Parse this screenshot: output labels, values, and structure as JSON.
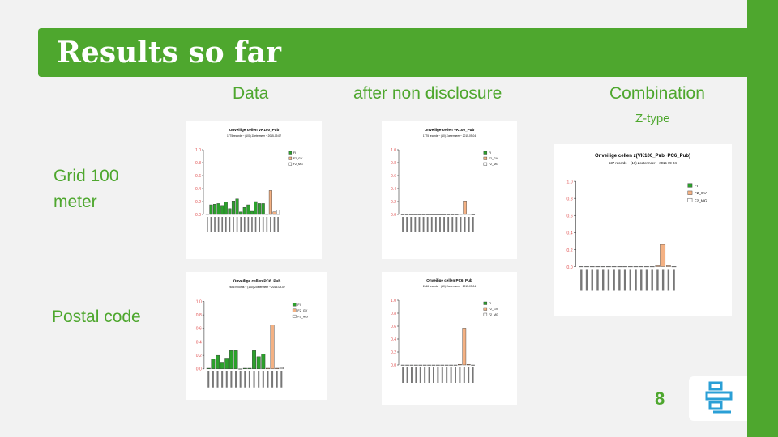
{
  "slide": {
    "title": "Results so far",
    "col_data": "Data",
    "col_after": "after non disclosure",
    "col_combination": "Combination",
    "col_combination_sub": "Z-type",
    "row_grid": "Grid 100\nmeter",
    "row_postal": "Postal code",
    "page_number": "8"
  },
  "colors": {
    "green": "#4ea72e",
    "fi": "#2ca02c",
    "f2gv": "#f4b183"
  },
  "chart_data": [
    {
      "id": "vk100-data",
      "type": "bar",
      "title": "Onveilige cellen VK100_Pub",
      "subtitle": "1775 records ~ (100) Zoetermeer ~ 2015-09-07",
      "legend": [
        "FI",
        "F2_GV",
        "F2_MG"
      ],
      "yticks": [
        "0.0",
        "0.2",
        "0.4",
        "0.6",
        "0.8",
        "1.0"
      ],
      "ylim": [
        0,
        1
      ],
      "bars": [
        {
          "s": 0,
          "v": 0.01
        },
        {
          "s": 0,
          "v": 0.15
        },
        {
          "s": 0,
          "v": 0.16
        },
        {
          "s": 0,
          "v": 0.17
        },
        {
          "s": 0,
          "v": 0.14
        },
        {
          "s": 0,
          "v": 0.19
        },
        {
          "s": 0,
          "v": 0.09
        },
        {
          "s": 0,
          "v": 0.21
        },
        {
          "s": 0,
          "v": 0.24
        },
        {
          "s": 0,
          "v": 0.04
        },
        {
          "s": 0,
          "v": 0.11
        },
        {
          "s": 0,
          "v": 0.15
        },
        {
          "s": 0,
          "v": 0.05
        },
        {
          "s": 0,
          "v": 0.2
        },
        {
          "s": 0,
          "v": 0.17
        },
        {
          "s": 0,
          "v": 0.17
        },
        {
          "s": 1,
          "v": 0.01
        },
        {
          "s": 1,
          "v": 0.37
        },
        {
          "s": 1,
          "v": 0.04
        },
        {
          "s": 2,
          "v": 0.07
        }
      ]
    },
    {
      "id": "vk100-after",
      "type": "bar",
      "title": "Onveilige cellen VK100_Pub",
      "subtitle": "1775 records ~ (10) Zoetermeer ~ 2015-09-04",
      "legend": [
        "FI",
        "F2_GV",
        "F2_MG"
      ],
      "yticks": [
        "0.0",
        "0.2",
        "0.4",
        "0.6",
        "0.8",
        "1.0"
      ],
      "ylim": [
        0,
        1
      ],
      "bars": [
        {
          "s": 0,
          "v": 0
        },
        {
          "s": 0,
          "v": 0
        },
        {
          "s": 0,
          "v": 0
        },
        {
          "s": 0,
          "v": 0
        },
        {
          "s": 0,
          "v": 0
        },
        {
          "s": 0,
          "v": 0
        },
        {
          "s": 0,
          "v": 0
        },
        {
          "s": 0,
          "v": 0
        },
        {
          "s": 0,
          "v": 0
        },
        {
          "s": 0,
          "v": 0
        },
        {
          "s": 0,
          "v": 0
        },
        {
          "s": 0,
          "v": 0
        },
        {
          "s": 0,
          "v": 0
        },
        {
          "s": 0,
          "v": 0
        },
        {
          "s": 1,
          "v": 0.01
        },
        {
          "s": 1,
          "v": 0.21
        },
        {
          "s": 1,
          "v": 0.01
        },
        {
          "s": 2,
          "v": 0.0
        }
      ]
    },
    {
      "id": "pc6-data",
      "type": "bar",
      "title": "Onveilige cellen PC6_Pub",
      "subtitle": "2646 records ~ (100) Zoetermeer ~ 2015-09-07",
      "legend": [
        "FI",
        "F2_GV",
        "F2_MG"
      ],
      "yticks": [
        "0.0",
        "0.2",
        "0.4",
        "0.6",
        "0.8",
        "1.0"
      ],
      "ylim": [
        0,
        1
      ],
      "bars": [
        {
          "s": 0,
          "v": 0.01
        },
        {
          "s": 0,
          "v": 0.15
        },
        {
          "s": 0,
          "v": 0.2
        },
        {
          "s": 0,
          "v": 0.1
        },
        {
          "s": 0,
          "v": 0.16
        },
        {
          "s": 0,
          "v": 0.27
        },
        {
          "s": 0,
          "v": 0.27
        },
        {
          "s": 0,
          "v": 0.0
        },
        {
          "s": 0,
          "v": 0.01
        },
        {
          "s": 0,
          "v": 0.01
        },
        {
          "s": 0,
          "v": 0.27
        },
        {
          "s": 0,
          "v": 0.18
        },
        {
          "s": 0,
          "v": 0.22
        },
        {
          "s": 1,
          "v": 0.01
        },
        {
          "s": 1,
          "v": 0.65
        },
        {
          "s": 1,
          "v": 0.01
        },
        {
          "s": 2,
          "v": 0.02
        }
      ]
    },
    {
      "id": "pc6-after",
      "type": "bar",
      "title": "Onveilige cellen PC6_Pub",
      "subtitle": "2646 records ~ (10) Zoetermeer ~ 2015-09-04",
      "legend": [
        "FI",
        "F2_GV",
        "F2_MG"
      ],
      "yticks": [
        "0.0",
        "0.2",
        "0.4",
        "0.6",
        "0.8",
        "1.0"
      ],
      "ylim": [
        0,
        1
      ],
      "bars": [
        {
          "s": 0,
          "v": 0
        },
        {
          "s": 0,
          "v": 0
        },
        {
          "s": 0,
          "v": 0
        },
        {
          "s": 0,
          "v": 0
        },
        {
          "s": 0,
          "v": 0
        },
        {
          "s": 0,
          "v": 0
        },
        {
          "s": 0,
          "v": 0
        },
        {
          "s": 0,
          "v": 0
        },
        {
          "s": 0,
          "v": 0
        },
        {
          "s": 0,
          "v": 0
        },
        {
          "s": 0,
          "v": 0
        },
        {
          "s": 0,
          "v": 0
        },
        {
          "s": 0,
          "v": 0
        },
        {
          "s": 1,
          "v": 0.01
        },
        {
          "s": 1,
          "v": 0.57
        },
        {
          "s": 1,
          "v": 0.01
        },
        {
          "s": 2,
          "v": 0.0
        }
      ]
    },
    {
      "id": "combination",
      "type": "bar",
      "title": "Onveilige cellen z(VK100_Pub~PC6_Pub)",
      "subtitle": "537 records ~ (10) Zoetermeer ~ 2015-09-04",
      "legend": [
        "FI",
        "F2_GV",
        "F2_MG"
      ],
      "yticks": [
        "0.0",
        "0.2",
        "0.4",
        "0.6",
        "0.8",
        "1.0"
      ],
      "ylim": [
        0,
        1
      ],
      "bars": [
        {
          "s": 0,
          "v": 0
        },
        {
          "s": 0,
          "v": 0
        },
        {
          "s": 0,
          "v": 0
        },
        {
          "s": 0,
          "v": 0
        },
        {
          "s": 0,
          "v": 0
        },
        {
          "s": 0,
          "v": 0
        },
        {
          "s": 0,
          "v": 0
        },
        {
          "s": 0,
          "v": 0
        },
        {
          "s": 0,
          "v": 0
        },
        {
          "s": 0,
          "v": 0
        },
        {
          "s": 0,
          "v": 0
        },
        {
          "s": 0,
          "v": 0
        },
        {
          "s": 0,
          "v": 0
        },
        {
          "s": 0,
          "v": 0
        },
        {
          "s": 1,
          "v": 0.01
        },
        {
          "s": 1,
          "v": 0.26
        },
        {
          "s": 1,
          "v": 0.01
        },
        {
          "s": 2,
          "v": 0.0
        }
      ]
    }
  ]
}
